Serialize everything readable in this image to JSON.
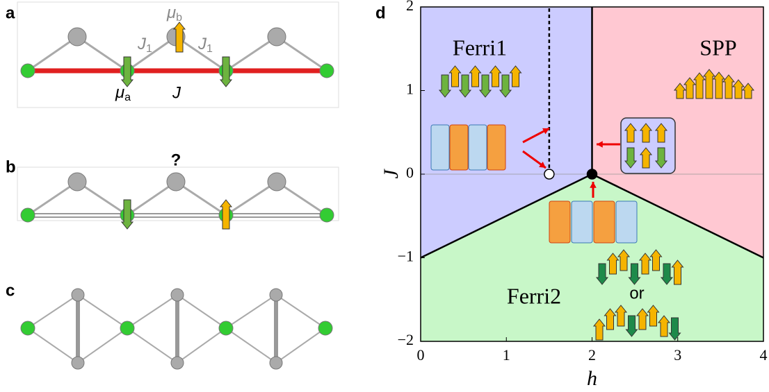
{
  "panel_a": {
    "label": "a",
    "mu_b": {
      "symbol": "μ",
      "sub": "b"
    },
    "j1_left": {
      "symbol": "J",
      "sub": "1"
    },
    "j1_right": {
      "symbol": "J",
      "sub": "1"
    },
    "mu_a": {
      "symbol": "μ",
      "sub": "a"
    },
    "j": "J"
  },
  "panel_b": {
    "label": "b",
    "question": "?"
  },
  "panel_c": {
    "label": "c"
  },
  "panel_d": {
    "label": "d",
    "x_label": "h",
    "y_label": "J",
    "xlim": [
      0,
      4
    ],
    "ylim": [
      -2,
      2
    ],
    "xticks": [
      0,
      1,
      2,
      3,
      4
    ],
    "yticks": [
      {
        "value": -2,
        "label": "−2"
      },
      {
        "value": -1,
        "label": "−1"
      },
      0,
      1,
      2
    ],
    "boundaries": [
      {
        "h": [
          2,
          2
        ],
        "J": [
          0,
          2
        ],
        "style": "solid"
      },
      {
        "h": [
          2,
          0
        ],
        "J": [
          0,
          -1
        ],
        "style": "solid"
      },
      {
        "h": [
          2,
          4
        ],
        "J": [
          0,
          -1
        ],
        "style": "solid"
      },
      {
        "h": [
          1.5,
          1.5
        ],
        "J": [
          0,
          2
        ],
        "style": "dashed"
      }
    ],
    "points": [
      {
        "h": 1.5,
        "J": 0,
        "fill": "open"
      },
      {
        "h": 2,
        "J": 0,
        "fill": "filled"
      }
    ],
    "regions": {
      "ferri1": "Ferri1",
      "spp": "SPP",
      "ferri2": "Ferri2",
      "or": "or"
    }
  }
}
